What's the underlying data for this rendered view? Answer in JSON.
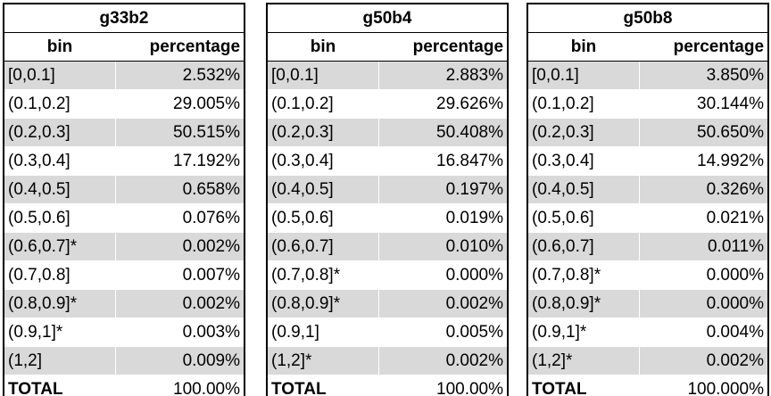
{
  "headers": {
    "bin": "bin",
    "percentage": "percentage"
  },
  "tables": [
    {
      "title": "g33b2",
      "rows": [
        {
          "bin": "[0,0.1]",
          "pct": "2.532%"
        },
        {
          "bin": "(0.1,0.2]",
          "pct": "29.005%"
        },
        {
          "bin": "(0.2,0.3]",
          "pct": "50.515%"
        },
        {
          "bin": "(0.3,0.4]",
          "pct": "17.192%"
        },
        {
          "bin": "(0.4,0.5]",
          "pct": "0.658%"
        },
        {
          "bin": "(0.5,0.6]",
          "pct": "0.076%"
        },
        {
          "bin": "(0.6,0.7]*",
          "pct": "0.002%"
        },
        {
          "bin": "(0.7,0.8]",
          "pct": "0.007%"
        },
        {
          "bin": "(0.8,0.9]*",
          "pct": "0.002%"
        },
        {
          "bin": "(0.9,1]*",
          "pct": "0.003%"
        },
        {
          "bin": "(1,2]",
          "pct": "0.009%"
        }
      ],
      "total": {
        "bin": "TOTAL",
        "pct": "100.00%"
      }
    },
    {
      "title": "g50b4",
      "rows": [
        {
          "bin": "[0,0.1]",
          "pct": "2.883%"
        },
        {
          "bin": "(0.1,0.2]",
          "pct": "29.626%"
        },
        {
          "bin": "(0.2,0.3]",
          "pct": "50.408%"
        },
        {
          "bin": "(0.3,0.4]",
          "pct": "16.847%"
        },
        {
          "bin": "(0.4,0.5]",
          "pct": "0.197%"
        },
        {
          "bin": "(0.5,0.6]",
          "pct": "0.019%"
        },
        {
          "bin": "(0.6,0.7]",
          "pct": "0.010%"
        },
        {
          "bin": "(0.7,0.8]*",
          "pct": "0.000%"
        },
        {
          "bin": "(0.8,0.9]*",
          "pct": "0.002%"
        },
        {
          "bin": "(0.9,1]",
          "pct": "0.005%"
        },
        {
          "bin": "(1,2]*",
          "pct": "0.002%"
        }
      ],
      "total": {
        "bin": "TOTAL",
        "pct": "100.00%"
      }
    },
    {
      "title": "g50b8",
      "rows": [
        {
          "bin": "[0,0.1]",
          "pct": "3.850%"
        },
        {
          "bin": "(0.1,0.2]",
          "pct": "30.144%"
        },
        {
          "bin": "(0.2,0.3]",
          "pct": "50.650%"
        },
        {
          "bin": "(0.3,0.4]",
          "pct": "14.992%"
        },
        {
          "bin": "(0.4,0.5]",
          "pct": "0.326%"
        },
        {
          "bin": "(0.5,0.6]",
          "pct": "0.021%"
        },
        {
          "bin": "(0.6,0.7]",
          "pct": "0.011%"
        },
        {
          "bin": "(0.7,0.8]*",
          "pct": "0.000%"
        },
        {
          "bin": "(0.8,0.9]*",
          "pct": "0.000%"
        },
        {
          "bin": "(0.9,1]*",
          "pct": "0.004%"
        },
        {
          "bin": "(1,2]*",
          "pct": "0.002%"
        }
      ],
      "total": {
        "bin": "TOTAL",
        "pct": "100.000%"
      }
    }
  ]
}
